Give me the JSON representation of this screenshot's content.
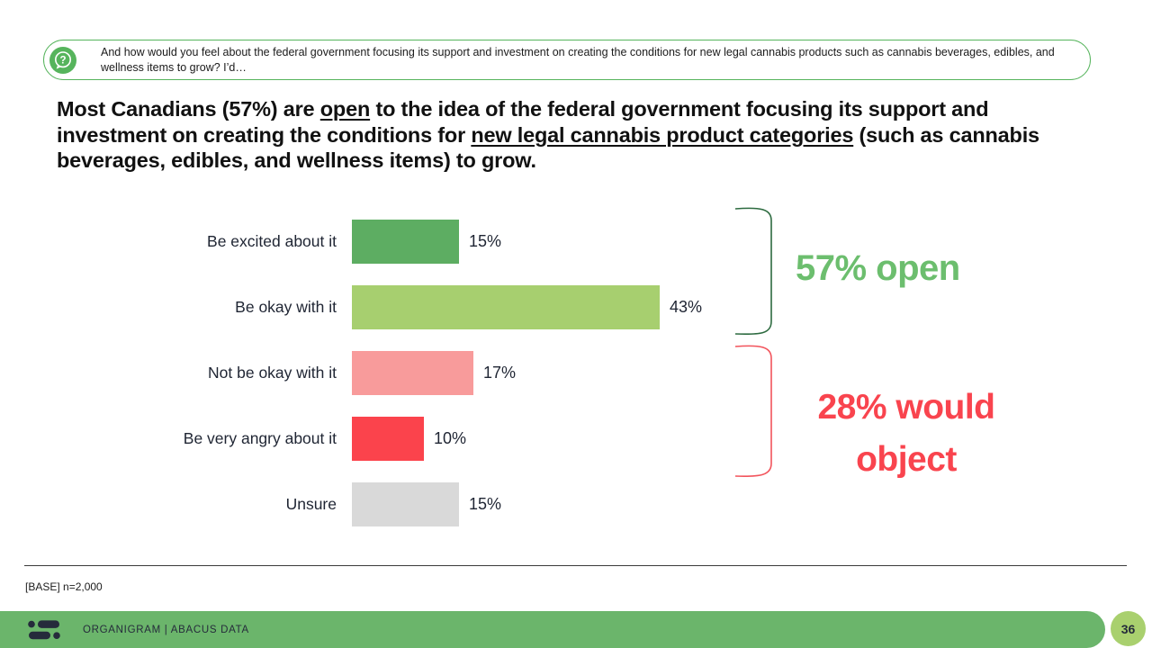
{
  "question_box": {
    "icon": "question-bubble-icon",
    "text": "And how would you feel about the federal government focusing its support and investment on creating the conditions for new legal cannabis products such as cannabis beverages, edibles, and wellness items to grow? I’d…",
    "border_color": "#56B45C"
  },
  "headline": {
    "part1": "Most Canadians (57%) are ",
    "underline1": "open",
    "part2": " to the idea of the federal government focusing its support and investment on creating the conditions for ",
    "underline2": "new legal cannabis product categories",
    "part3": " (such as cannabis beverages, edibles, and wellness items) to grow."
  },
  "chart_data": {
    "type": "bar",
    "orientation": "horizontal",
    "title": "",
    "xlabel": "",
    "ylabel": "",
    "xlim": [
      0,
      50
    ],
    "grid": false,
    "legend": false,
    "categories": [
      "Be excited about it",
      "Be okay with it",
      "Not be okay with it",
      "Be very angry about it",
      "Unsure"
    ],
    "values": [
      15,
      43,
      17,
      10,
      15
    ],
    "value_labels": [
      "15%",
      "43%",
      "17%",
      "10%",
      "15%"
    ],
    "bar_colors": [
      "#5DAD62",
      "#A7CF6F",
      "#F89B9B",
      "#FB434C",
      "#D9D9D9"
    ],
    "annotations": [
      {
        "text": "57% open",
        "color": "#6CBE6E",
        "bracket_color": "#2D6B40",
        "covers": [
          "Be excited about it",
          "Be okay with it"
        ]
      },
      {
        "text": "28% would object",
        "color": "#F9444E",
        "bracket_color": "#F2545C",
        "covers": [
          "Not be okay with it",
          "Be very angry about it"
        ]
      }
    ]
  },
  "footnote": "[BASE] n=2,000",
  "footer": {
    "brand": "ORGANIGRAM | ABACUS DATA",
    "page_number": "36",
    "bar_color": "#6BB56B",
    "page_circle_color": "#A9D06E",
    "text_color": "#252B3B"
  }
}
